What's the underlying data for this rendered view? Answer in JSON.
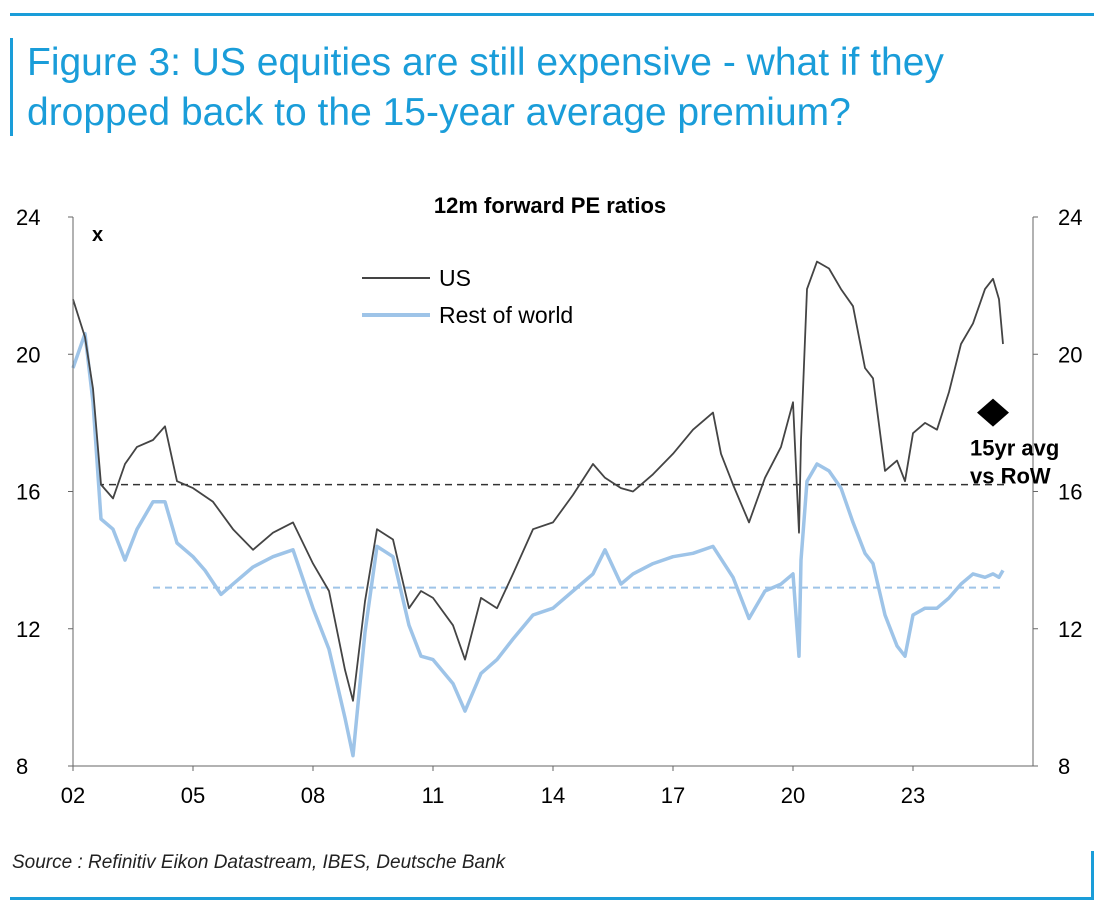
{
  "figure": {
    "title": "Figure 3: US equities are still expensive - what if they\ndropped back to the 15-year average premium?",
    "source": "Source : Refinitiv Eikon Datastream, IBES, Deutsche Bank",
    "accent_color": "#1a9dd9"
  },
  "chart_data": {
    "type": "line",
    "title": "12m forward PE ratios",
    "y_unit_label": "x",
    "xlabel": "",
    "ylabel": "",
    "xlim": [
      2002.0,
      2026.0
    ],
    "ylim": [
      8,
      24
    ],
    "x_ticks": [
      {
        "value": 2002,
        "label": "02"
      },
      {
        "value": 2005,
        "label": "05"
      },
      {
        "value": 2008,
        "label": "08"
      },
      {
        "value": 2011,
        "label": "11"
      },
      {
        "value": 2014,
        "label": "14"
      },
      {
        "value": 2017,
        "label": "17"
      },
      {
        "value": 2020,
        "label": "20"
      },
      {
        "value": 2023,
        "label": "23"
      }
    ],
    "y_ticks": [
      8,
      12,
      16,
      20,
      24
    ],
    "legend_position": "top-center",
    "series": [
      {
        "name": "US",
        "color": "#444444",
        "x": [
          2002.0,
          2002.3,
          2002.5,
          2002.7,
          2003.0,
          2003.3,
          2003.6,
          2004.0,
          2004.3,
          2004.6,
          2005.0,
          2005.5,
          2006.0,
          2006.5,
          2007.0,
          2007.5,
          2008.0,
          2008.4,
          2008.8,
          2009.0,
          2009.3,
          2009.6,
          2010.0,
          2010.4,
          2010.7,
          2011.0,
          2011.5,
          2011.8,
          2012.2,
          2012.6,
          2013.0,
          2013.5,
          2014.0,
          2014.5,
          2015.0,
          2015.3,
          2015.7,
          2016.0,
          2016.5,
          2017.0,
          2017.5,
          2018.0,
          2018.2,
          2018.5,
          2018.9,
          2019.3,
          2019.7,
          2020.0,
          2020.15,
          2020.2,
          2020.35,
          2020.6,
          2020.9,
          2021.2,
          2021.5,
          2021.8,
          2022.0,
          2022.3,
          2022.6,
          2022.8,
          2023.0,
          2023.3,
          2023.6,
          2023.9,
          2024.2,
          2024.5,
          2024.8,
          2025.0,
          2025.15,
          2025.25
        ],
        "values": [
          21.6,
          20.5,
          19.0,
          16.2,
          15.8,
          16.8,
          17.3,
          17.5,
          17.9,
          16.3,
          16.1,
          15.7,
          14.9,
          14.3,
          14.8,
          15.1,
          13.9,
          13.1,
          10.8,
          9.9,
          12.8,
          14.9,
          14.6,
          12.6,
          13.1,
          12.9,
          12.1,
          11.1,
          12.9,
          12.6,
          13.6,
          14.9,
          15.1,
          15.9,
          16.8,
          16.4,
          16.1,
          16.0,
          16.5,
          17.1,
          17.8,
          18.3,
          17.1,
          16.2,
          15.1,
          16.4,
          17.3,
          18.6,
          14.8,
          17.5,
          21.9,
          22.7,
          22.5,
          21.9,
          21.4,
          19.6,
          19.3,
          16.6,
          16.9,
          16.3,
          17.7,
          18.0,
          17.8,
          18.9,
          20.3,
          20.9,
          21.9,
          22.2,
          21.6,
          20.3
        ]
      },
      {
        "name": "Rest of world",
        "color": "#9ec4e8",
        "x": [
          2002.0,
          2002.3,
          2002.5,
          2002.7,
          2003.0,
          2003.3,
          2003.6,
          2004.0,
          2004.3,
          2004.6,
          2005.0,
          2005.3,
          2005.7,
          2006.0,
          2006.5,
          2007.0,
          2007.5,
          2008.0,
          2008.4,
          2008.8,
          2009.0,
          2009.3,
          2009.6,
          2010.0,
          2010.4,
          2010.7,
          2011.0,
          2011.5,
          2011.8,
          2012.2,
          2012.6,
          2013.0,
          2013.5,
          2014.0,
          2014.5,
          2015.0,
          2015.3,
          2015.7,
          2016.0,
          2016.5,
          2017.0,
          2017.5,
          2018.0,
          2018.5,
          2018.9,
          2019.3,
          2019.7,
          2020.0,
          2020.15,
          2020.2,
          2020.35,
          2020.6,
          2020.9,
          2021.2,
          2021.5,
          2021.8,
          2022.0,
          2022.3,
          2022.6,
          2022.8,
          2023.0,
          2023.3,
          2023.6,
          2023.9,
          2024.2,
          2024.5,
          2024.8,
          2025.0,
          2025.15,
          2025.25
        ],
        "values": [
          19.6,
          20.6,
          18.6,
          15.2,
          14.9,
          14.0,
          14.9,
          15.7,
          15.7,
          14.5,
          14.1,
          13.7,
          13.0,
          13.3,
          13.8,
          14.1,
          14.3,
          12.6,
          11.4,
          9.4,
          8.3,
          11.9,
          14.4,
          14.1,
          12.1,
          11.2,
          11.1,
          10.4,
          9.6,
          10.7,
          11.1,
          11.7,
          12.4,
          12.6,
          13.1,
          13.6,
          14.3,
          13.3,
          13.6,
          13.9,
          14.1,
          14.2,
          14.4,
          13.5,
          12.3,
          13.1,
          13.3,
          13.6,
          11.2,
          14.0,
          16.3,
          16.8,
          16.6,
          16.1,
          15.1,
          14.2,
          13.9,
          12.4,
          11.5,
          11.2,
          12.4,
          12.6,
          12.6,
          12.9,
          13.3,
          13.6,
          13.5,
          13.6,
          13.5,
          13.7
        ]
      }
    ],
    "reference_lines": [
      {
        "label": "US 15yr average",
        "value": 16.2,
        "style": "dashed",
        "color": "#333333"
      },
      {
        "label": "RoW 15yr average",
        "value": 13.2,
        "style": "dashed",
        "color": "#9ec4e8"
      }
    ],
    "annotations": [
      {
        "text_line1": "15yr avg",
        "text_line2": "vs RoW",
        "marker": "diamond",
        "x": 2025.0,
        "y": 18.3
      }
    ]
  }
}
